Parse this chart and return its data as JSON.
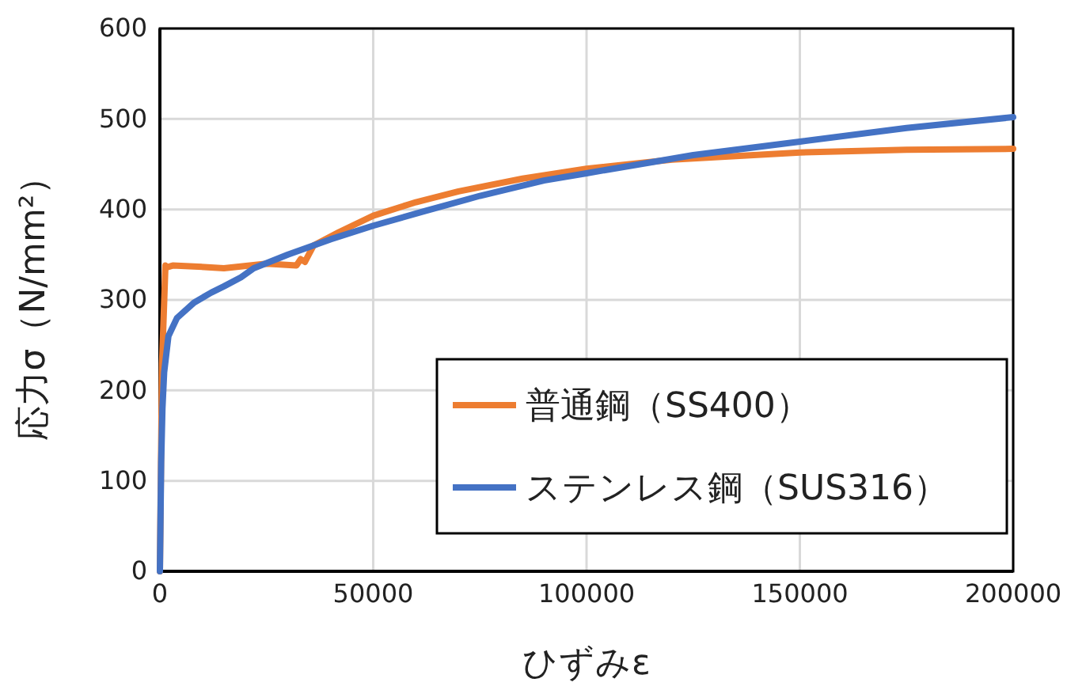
{
  "chart_data": {
    "type": "line",
    "xlabel": "ひずみε",
    "ylabel": "応力σ（N/mm²）",
    "xlim": [
      0,
      200000
    ],
    "ylim": [
      0,
      600
    ],
    "xticks": [
      0,
      50000,
      100000,
      150000,
      200000
    ],
    "yticks": [
      0,
      100,
      200,
      300,
      400,
      500,
      600
    ],
    "grid": true,
    "legend": "bottom right",
    "marker": "none",
    "line_style": "solid",
    "series": [
      {
        "name": "普通鋼（SS400）",
        "color": "#ed7d31",
        "x": [
          0,
          500,
          1300,
          1600,
          3000,
          8000,
          15000,
          25000,
          32000,
          33000,
          34000,
          36000,
          42000,
          50000,
          60000,
          70000,
          85000,
          100000,
          120000,
          150000,
          175000,
          200000
        ],
        "values": [
          0,
          230,
          338,
          336,
          338,
          337,
          335,
          340,
          338,
          345,
          342,
          360,
          375,
          393,
          408,
          420,
          434,
          445,
          455,
          463,
          466,
          467
        ]
      },
      {
        "name": "ステンレス鋼（SUS316）",
        "color": "#4472c4",
        "x": [
          0,
          300,
          600,
          1000,
          2000,
          4000,
          8000,
          12000,
          15000,
          19000,
          22000,
          30000,
          40000,
          50000,
          62000,
          75000,
          90000,
          100000,
          115000,
          125000,
          150000,
          175000,
          200000
        ],
        "values": [
          0,
          120,
          180,
          220,
          260,
          280,
          297,
          308,
          315,
          325,
          335,
          350,
          367,
          382,
          398,
          415,
          432,
          440,
          452,
          460,
          475,
          490,
          502
        ]
      }
    ]
  }
}
